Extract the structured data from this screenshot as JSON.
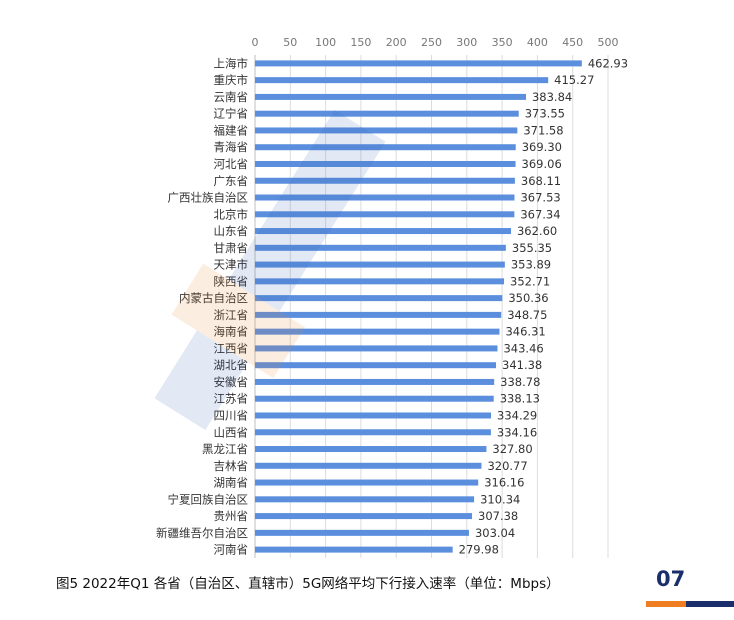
{
  "chart_data": {
    "type": "bar",
    "orientation": "horizontal",
    "categories": [
      "上海市",
      "重庆市",
      "云南省",
      "辽宁省",
      "福建省",
      "青海省",
      "河北省",
      "广东省",
      "广西壮族自治区",
      "北京市",
      "山东省",
      "甘肃省",
      "天津市",
      "陕西省",
      "内蒙古自治区",
      "浙江省",
      "海南省",
      "江西省",
      "湖北省",
      "安徽省",
      "江苏省",
      "四川省",
      "山西省",
      "黑龙江省",
      "吉林省",
      "湖南省",
      "宁夏回族自治区",
      "贵州省",
      "新疆维吾尔自治区",
      "河南省"
    ],
    "values": [
      462.93,
      415.27,
      383.84,
      373.55,
      371.58,
      369.3,
      369.06,
      368.11,
      367.53,
      367.34,
      362.6,
      355.35,
      353.89,
      352.71,
      350.36,
      348.75,
      346.31,
      343.46,
      341.38,
      338.78,
      338.13,
      334.29,
      334.16,
      327.8,
      320.77,
      316.16,
      310.34,
      307.38,
      303.04,
      279.98
    ],
    "value_labels": [
      "462.93",
      "415.27",
      "383.84",
      "373.55",
      "371.58",
      "369.30",
      "369.06",
      "368.11",
      "367.53",
      "367.34",
      "362.60",
      "355.35",
      "353.89",
      "352.71",
      "350.36",
      "348.75",
      "346.31",
      "343.46",
      "341.38",
      "338.78",
      "338.13",
      "334.29",
      "334.16",
      "327.80",
      "320.77",
      "316.16",
      "310.34",
      "307.38",
      "303.04",
      "279.98"
    ],
    "xlim": [
      0,
      500
    ],
    "xticks": [
      "0",
      "50",
      "100",
      "150",
      "200",
      "250",
      "300",
      "350",
      "400",
      "450",
      "500"
    ],
    "x_axis_position": "top",
    "grid": true,
    "bar_color": "#5b8fde",
    "label_color": "#333333"
  },
  "caption": "图5 2022年Q1 各省（自治区、直辖市）5G网络平均下行接入速率（单位：Mbps）",
  "page_number": "07",
  "colors": {
    "accent_orange": "#ef7d22",
    "accent_navy": "#1a2e6b"
  }
}
